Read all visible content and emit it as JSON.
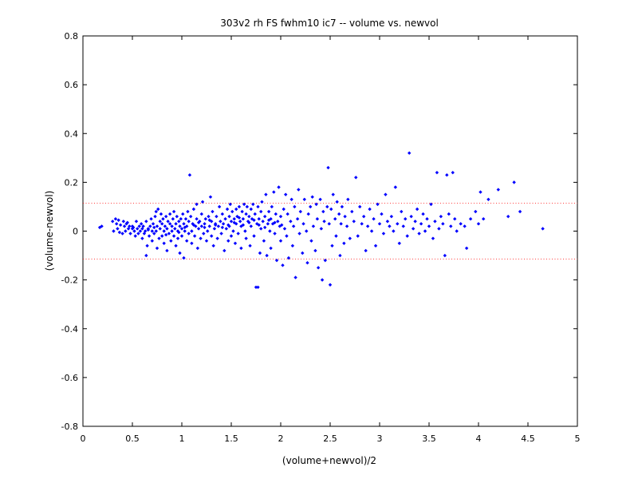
{
  "chart_data": {
    "type": "scatter",
    "title": "303v2 rh FS fwhm10 ic7 -- volume vs. newvol",
    "xlabel": "(volume+newvol)/2",
    "ylabel": "(volume-newvol)",
    "xlim": [
      0,
      5
    ],
    "ylim": [
      -0.8,
      0.8
    ],
    "x_ticks": [
      0,
      0.5,
      1,
      1.5,
      2,
      2.5,
      3,
      3.5,
      4,
      4.5,
      5
    ],
    "x_tick_labels": [
      "0",
      "0.5",
      "1",
      "1.5",
      "2",
      "2.5",
      "3",
      "3.5",
      "4",
      "4.5",
      "5"
    ],
    "y_ticks": [
      -0.8,
      -0.6,
      -0.4,
      -0.2,
      0,
      0.2,
      0.4,
      0.6,
      0.8
    ],
    "y_tick_labels": [
      "-0.8",
      "-0.6",
      "-0.4",
      "-0.2",
      "0",
      "0.2",
      "0.4",
      "0.6",
      "0.8"
    ],
    "grid": false,
    "marker_color": "#0000ff",
    "limit_line_color": "#ff0000",
    "limit_lines": [
      0.115,
      -0.115
    ],
    "points": [
      [
        0.17,
        0.015
      ],
      [
        0.19,
        0.02
      ],
      [
        0.3,
        0.04
      ],
      [
        0.31,
        0.0
      ],
      [
        0.33,
        0.05
      ],
      [
        0.34,
        0.03
      ],
      [
        0.35,
        0.01
      ],
      [
        0.36,
        0.045
      ],
      [
        0.38,
        0.025
      ],
      [
        0.4,
        -0.01
      ],
      [
        0.41,
        0.04
      ],
      [
        0.42,
        0.02
      ],
      [
        0.43,
        0.0
      ],
      [
        0.44,
        0.03
      ],
      [
        0.46,
        0.01
      ],
      [
        0.47,
        0.02
      ],
      [
        0.48,
        -0.01
      ],
      [
        0.5,
        0.01
      ],
      [
        0.5,
        0.02
      ],
      [
        0.52,
        0.0
      ],
      [
        0.53,
        -0.02
      ],
      [
        0.54,
        0.04
      ],
      [
        0.55,
        0.01
      ],
      [
        0.56,
        -0.01
      ],
      [
        0.57,
        0.02
      ],
      [
        0.58,
        0.0
      ],
      [
        0.59,
        0.03
      ],
      [
        0.6,
        -0.03
      ],
      [
        0.6,
        0.01
      ],
      [
        0.61,
        0.02
      ],
      [
        0.62,
        -0.01
      ],
      [
        0.63,
        0.0
      ],
      [
        0.64,
        0.04
      ],
      [
        0.64,
        -0.1
      ],
      [
        0.65,
        -0.06
      ],
      [
        0.66,
        0.01
      ],
      [
        0.67,
        -0.02
      ],
      [
        0.68,
        0.02
      ],
      [
        0.69,
        0.05
      ],
      [
        0.7,
        -0.04
      ],
      [
        0.7,
        0.0
      ],
      [
        0.71,
        0.03
      ],
      [
        0.72,
        -0.01
      ],
      [
        0.73,
        0.06
      ],
      [
        0.74,
        0.08
      ],
      [
        0.74,
        0.0
      ],
      [
        0.75,
        -0.07
      ],
      [
        0.75,
        0.02
      ],
      [
        0.76,
        0.09
      ],
      [
        0.77,
        -0.03
      ],
      [
        0.78,
        0.04
      ],
      [
        0.78,
        0.01
      ],
      [
        0.79,
        0.07
      ],
      [
        0.8,
        -0.02
      ],
      [
        0.8,
        0.03
      ],
      [
        0.81,
        0.05
      ],
      [
        0.82,
        -0.05
      ],
      [
        0.82,
        0.0
      ],
      [
        0.83,
        0.02
      ],
      [
        0.84,
        0.06
      ],
      [
        0.85,
        -0.08
      ],
      [
        0.85,
        0.01
      ],
      [
        0.86,
        0.04
      ],
      [
        0.87,
        -0.01
      ],
      [
        0.88,
        0.03
      ],
      [
        0.88,
        0.07
      ],
      [
        0.89,
        -0.04
      ],
      [
        0.9,
        0.02
      ],
      [
        0.9,
        0.0
      ],
      [
        0.91,
        0.05
      ],
      [
        0.92,
        -0.02
      ],
      [
        0.92,
        0.08
      ],
      [
        0.93,
        0.01
      ],
      [
        0.94,
        -0.06
      ],
      [
        0.94,
        0.03
      ],
      [
        0.95,
        0.06
      ],
      [
        0.96,
        0.0
      ],
      [
        0.96,
        -0.03
      ],
      [
        0.97,
        0.04
      ],
      [
        0.98,
        0.02
      ],
      [
        0.98,
        -0.09
      ],
      [
        0.99,
        0.05
      ],
      [
        1.0,
        0.01
      ],
      [
        1.0,
        -0.02
      ],
      [
        1.01,
        0.07
      ],
      [
        1.02,
        0.03
      ],
      [
        1.02,
        -0.11
      ],
      [
        1.03,
        0.0
      ],
      [
        1.04,
        0.05
      ],
      [
        1.05,
        -0.04
      ],
      [
        1.05,
        0.02
      ],
      [
        1.06,
        0.08
      ],
      [
        1.07,
        -0.01
      ],
      [
        1.07,
        0.04
      ],
      [
        1.08,
        0.23
      ],
      [
        1.09,
        0.06
      ],
      [
        1.1,
        0.0
      ],
      [
        1.1,
        -0.05
      ],
      [
        1.11,
        0.03
      ],
      [
        1.12,
        0.09
      ],
      [
        1.13,
        -0.02
      ],
      [
        1.14,
        0.02
      ],
      [
        1.15,
        0.05
      ],
      [
        1.15,
        0.11
      ],
      [
        1.16,
        -0.07
      ],
      [
        1.17,
        0.01
      ],
      [
        1.18,
        0.04
      ],
      [
        1.19,
        -0.03
      ],
      [
        1.2,
        0.07
      ],
      [
        1.2,
        0.02
      ],
      [
        1.21,
        0.12
      ],
      [
        1.22,
        -0.01
      ],
      [
        1.23,
        0.03
      ],
      [
        1.24,
        0.05
      ],
      [
        1.25,
        -0.04
      ],
      [
        1.26,
        0.0
      ],
      [
        1.27,
        0.06
      ],
      [
        1.28,
        0.02
      ],
      [
        1.29,
        0.14
      ],
      [
        1.3,
        -0.02
      ],
      [
        1.3,
        0.04
      ],
      [
        1.31,
        0.08
      ],
      [
        1.32,
        -0.06
      ],
      [
        1.33,
        0.01
      ],
      [
        1.34,
        0.03
      ],
      [
        1.35,
        0.06
      ],
      [
        1.36,
        -0.03
      ],
      [
        1.37,
        0.02
      ],
      [
        1.38,
        0.1
      ],
      [
        1.39,
        0.04
      ],
      [
        1.4,
        -0.01
      ],
      [
        1.41,
        0.07
      ],
      [
        1.42,
        0.03
      ],
      [
        1.43,
        -0.08
      ],
      [
        1.44,
        0.05
      ],
      [
        1.45,
        0.01
      ],
      [
        1.46,
        0.09
      ],
      [
        1.47,
        -0.04
      ],
      [
        1.48,
        0.06
      ],
      [
        1.48,
        0.02
      ],
      [
        1.49,
        0.11
      ],
      [
        1.5,
        -0.02
      ],
      [
        1.5,
        0.04
      ],
      [
        1.51,
        0.08
      ],
      [
        1.52,
        0.0
      ],
      [
        1.53,
        0.05
      ],
      [
        1.54,
        -0.05
      ],
      [
        1.55,
        0.09
      ],
      [
        1.55,
        0.03
      ],
      [
        1.56,
        0.06
      ],
      [
        1.57,
        -0.01
      ],
      [
        1.58,
        0.1
      ],
      [
        1.59,
        0.04
      ],
      [
        1.6,
        0.02
      ],
      [
        1.6,
        -0.07
      ],
      [
        1.61,
        0.08
      ],
      [
        1.62,
        0.05
      ],
      [
        1.63,
        0.11
      ],
      [
        1.64,
        0.0
      ],
      [
        1.65,
        0.07
      ],
      [
        1.65,
        -0.03
      ],
      [
        1.66,
        0.1
      ],
      [
        1.67,
        0.04
      ],
      [
        1.68,
        0.06
      ],
      [
        1.69,
        -0.06
      ],
      [
        1.7,
        0.09
      ],
      [
        1.7,
        0.02
      ],
      [
        1.71,
        0.05
      ],
      [
        1.72,
        0.11
      ],
      [
        1.73,
        -0.02
      ],
      [
        1.74,
        0.07
      ],
      [
        1.75,
        -0.23
      ],
      [
        1.76,
        0.03
      ],
      [
        1.77,
        -0.23
      ],
      [
        1.77,
        0.1
      ],
      [
        1.78,
        0.05
      ],
      [
        1.79,
        -0.09
      ],
      [
        1.8,
        0.08
      ],
      [
        1.8,
        0.01
      ],
      [
        1.81,
        0.12
      ],
      [
        1.82,
        0.04
      ],
      [
        1.83,
        -0.04
      ],
      [
        1.84,
        0.06
      ],
      [
        1.85,
        0.15
      ],
      [
        1.86,
        -0.1
      ],
      [
        1.87,
        0.03
      ],
      [
        1.88,
        0.08
      ],
      [
        1.89,
        0.0
      ],
      [
        1.9,
        0.05
      ],
      [
        1.9,
        -0.07
      ],
      [
        1.91,
        0.1
      ],
      [
        1.92,
        0.03
      ],
      [
        1.93,
        0.16
      ],
      [
        1.94,
        -0.01
      ],
      [
        1.95,
        0.07
      ],
      [
        1.96,
        -0.12
      ],
      [
        1.97,
        0.04
      ],
      [
        1.98,
        0.18
      ],
      [
        1.99,
        0.02
      ],
      [
        2.0,
        -0.04
      ],
      [
        2.0,
        0.06
      ],
      [
        2.02,
        -0.14
      ],
      [
        2.03,
        0.09
      ],
      [
        2.04,
        0.01
      ],
      [
        2.05,
        0.15
      ],
      [
        2.06,
        -0.02
      ],
      [
        2.07,
        0.07
      ],
      [
        2.08,
        -0.11
      ],
      [
        2.1,
        0.04
      ],
      [
        2.11,
        0.13
      ],
      [
        2.12,
        -0.06
      ],
      [
        2.13,
        0.02
      ],
      [
        2.14,
        0.1
      ],
      [
        2.15,
        -0.19
      ],
      [
        2.17,
        0.05
      ],
      [
        2.18,
        0.17
      ],
      [
        2.19,
        -0.01
      ],
      [
        2.2,
        0.08
      ],
      [
        2.22,
        -0.09
      ],
      [
        2.23,
        0.03
      ],
      [
        2.24,
        0.13
      ],
      [
        2.26,
        0.0
      ],
      [
        2.27,
        -0.13
      ],
      [
        2.28,
        0.07
      ],
      [
        2.3,
        0.1
      ],
      [
        2.31,
        -0.04
      ],
      [
        2.32,
        0.14
      ],
      [
        2.33,
        0.02
      ],
      [
        2.35,
        -0.08
      ],
      [
        2.36,
        0.11
      ],
      [
        2.37,
        0.05
      ],
      [
        2.38,
        -0.15
      ],
      [
        2.4,
        0.13
      ],
      [
        2.41,
        0.01
      ],
      [
        2.42,
        -0.2
      ],
      [
        2.43,
        0.08
      ],
      [
        2.44,
        0.04
      ],
      [
        2.45,
        -0.12
      ],
      [
        2.47,
        0.1
      ],
      [
        2.48,
        0.26
      ],
      [
        2.49,
        0.03
      ],
      [
        2.5,
        -0.22
      ],
      [
        2.51,
        0.09
      ],
      [
        2.52,
        -0.06
      ],
      [
        2.53,
        0.15
      ],
      [
        2.55,
        0.05
      ],
      [
        2.56,
        -0.02
      ],
      [
        2.57,
        0.12
      ],
      [
        2.59,
        0.07
      ],
      [
        2.6,
        -0.1
      ],
      [
        2.61,
        0.03
      ],
      [
        2.62,
        0.1
      ],
      [
        2.64,
        -0.05
      ],
      [
        2.65,
        0.06
      ],
      [
        2.67,
        0.02
      ],
      [
        2.68,
        0.13
      ],
      [
        2.7,
        -0.03
      ],
      [
        2.72,
        0.08
      ],
      [
        2.74,
        0.04
      ],
      [
        2.76,
        0.22
      ],
      [
        2.78,
        -0.02
      ],
      [
        2.8,
        0.1
      ],
      [
        2.82,
        0.03
      ],
      [
        2.84,
        0.06
      ],
      [
        2.86,
        -0.08
      ],
      [
        2.88,
        0.02
      ],
      [
        2.9,
        0.09
      ],
      [
        2.92,
        0.0
      ],
      [
        2.94,
        0.05
      ],
      [
        2.96,
        -0.06
      ],
      [
        2.98,
        0.11
      ],
      [
        3.0,
        0.03
      ],
      [
        3.02,
        0.07
      ],
      [
        3.04,
        -0.01
      ],
      [
        3.06,
        0.15
      ],
      [
        3.08,
        0.04
      ],
      [
        3.1,
        0.02
      ],
      [
        3.12,
        0.06
      ],
      [
        3.14,
        0.0
      ],
      [
        3.16,
        0.18
      ],
      [
        3.18,
        0.03
      ],
      [
        3.2,
        -0.05
      ],
      [
        3.22,
        0.08
      ],
      [
        3.24,
        0.02
      ],
      [
        3.26,
        0.05
      ],
      [
        3.28,
        -0.02
      ],
      [
        3.3,
        0.32
      ],
      [
        3.32,
        0.06
      ],
      [
        3.34,
        0.01
      ],
      [
        3.36,
        0.04
      ],
      [
        3.38,
        0.09
      ],
      [
        3.4,
        -0.01
      ],
      [
        3.42,
        0.03
      ],
      [
        3.44,
        0.07
      ],
      [
        3.46,
        0.0
      ],
      [
        3.48,
        0.05
      ],
      [
        3.5,
        0.02
      ],
      [
        3.52,
        0.11
      ],
      [
        3.54,
        -0.03
      ],
      [
        3.56,
        0.04
      ],
      [
        3.58,
        0.24
      ],
      [
        3.6,
        0.01
      ],
      [
        3.62,
        0.06
      ],
      [
        3.64,
        0.03
      ],
      [
        3.66,
        -0.1
      ],
      [
        3.68,
        0.23
      ],
      [
        3.7,
        0.07
      ],
      [
        3.72,
        0.02
      ],
      [
        3.74,
        0.24
      ],
      [
        3.76,
        0.05
      ],
      [
        3.78,
        0.0
      ],
      [
        3.82,
        0.03
      ],
      [
        3.86,
        0.02
      ],
      [
        3.88,
        -0.07
      ],
      [
        3.92,
        0.05
      ],
      [
        3.97,
        0.08
      ],
      [
        4.0,
        0.03
      ],
      [
        4.02,
        0.16
      ],
      [
        4.05,
        0.05
      ],
      [
        4.1,
        0.13
      ],
      [
        4.2,
        0.17
      ],
      [
        4.3,
        0.06
      ],
      [
        4.36,
        0.2
      ],
      [
        4.42,
        0.08
      ],
      [
        4.65,
        0.01
      ],
      [
        0.37,
        -0.005
      ],
      [
        0.45,
        0.035
      ],
      [
        0.51,
        0.015
      ],
      [
        0.66,
        0.005
      ],
      [
        0.72,
        0.015
      ],
      [
        0.84,
        -0.015
      ],
      [
        0.97,
        -0.005
      ],
      [
        1.03,
        0.015
      ],
      [
        1.12,
        0.025
      ],
      [
        1.17,
        0.035
      ],
      [
        1.23,
        0.015
      ],
      [
        1.28,
        0.045
      ],
      [
        1.34,
        0.025
      ],
      [
        1.41,
        0.015
      ],
      [
        1.47,
        0.025
      ],
      [
        1.53,
        0.035
      ],
      [
        1.58,
        0.055
      ],
      [
        1.62,
        0.025
      ],
      [
        1.68,
        0.035
      ],
      [
        1.73,
        0.045
      ],
      [
        1.78,
        0.025
      ],
      [
        1.84,
        0.015
      ],
      [
        1.88,
        0.045
      ],
      [
        1.94,
        0.035
      ],
      [
        2.01,
        0.025
      ]
    ]
  }
}
